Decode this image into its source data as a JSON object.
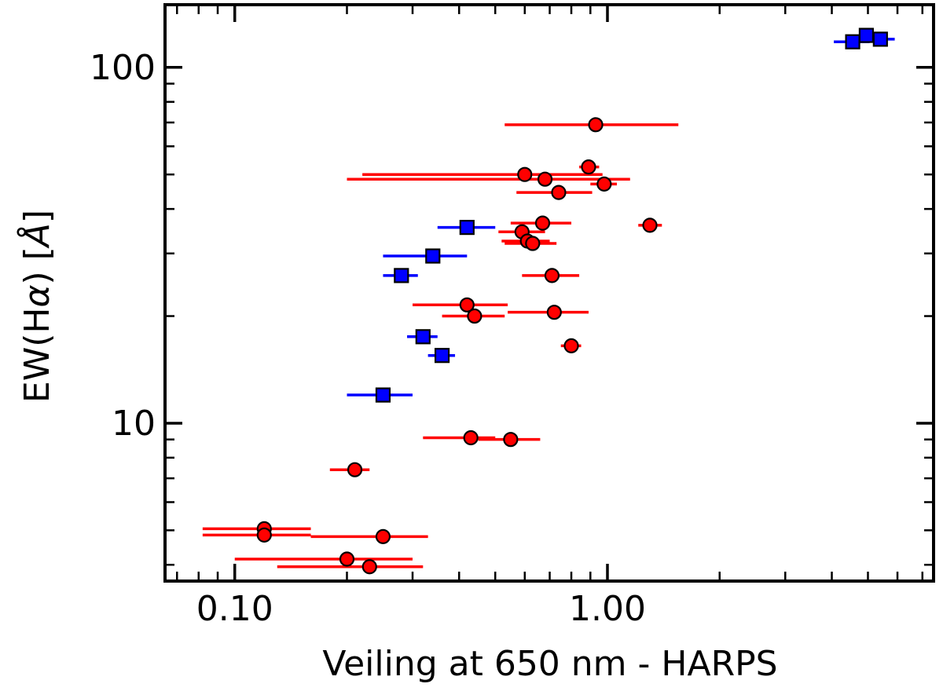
{
  "chart_data": {
    "type": "scatter",
    "title": "",
    "xlabel": "Veiling at 650 nm - HARPS",
    "ylabel_prefix": "EW(H",
    "ylabel_alpha": "α",
    "ylabel_suffix": ") [",
    "ylabel_unit": "Å",
    "ylabel_close": "]",
    "xscale": "log",
    "yscale": "log",
    "xlim": [
      0.065,
      7.5
    ],
    "ylim": [
      3.6,
      150
    ],
    "xticks": [
      {
        "value": 0.1,
        "label": "0.10"
      },
      {
        "value": 1.0,
        "label": "1.00"
      }
    ],
    "yticks": [
      {
        "value": 10,
        "label": "10"
      },
      {
        "value": 100,
        "label": "100"
      }
    ],
    "legend": "none",
    "grid": false,
    "series": [
      {
        "name": "red-circles",
        "marker": "circle",
        "color": "#ff0000",
        "points": [
          {
            "x": 0.93,
            "y": 69,
            "xlo": 0.53,
            "xhi": 1.55
          },
          {
            "x": 0.89,
            "y": 52.5,
            "xlo": 0.84,
            "xhi": 0.95
          },
          {
            "x": 0.6,
            "y": 50,
            "xlo": 0.22,
            "xhi": 0.97
          },
          {
            "x": 0.68,
            "y": 48.5,
            "xlo": 0.2,
            "xhi": 1.15
          },
          {
            "x": 0.98,
            "y": 47,
            "xlo": 0.9,
            "xhi": 1.06
          },
          {
            "x": 0.74,
            "y": 44.5,
            "xlo": 0.57,
            "xhi": 0.91
          },
          {
            "x": 0.67,
            "y": 36.5,
            "xlo": 0.55,
            "xhi": 0.8
          },
          {
            "x": 1.3,
            "y": 36,
            "xlo": 1.21,
            "xhi": 1.4
          },
          {
            "x": 0.59,
            "y": 34.5,
            "xlo": 0.51,
            "xhi": 0.68
          },
          {
            "x": 0.61,
            "y": 32.5,
            "xlo": 0.52,
            "xhi": 0.7
          },
          {
            "x": 0.63,
            "y": 32,
            "xlo": 0.53,
            "xhi": 0.73
          },
          {
            "x": 0.71,
            "y": 26,
            "xlo": 0.59,
            "xhi": 0.84
          },
          {
            "x": 0.42,
            "y": 21.5,
            "xlo": 0.3,
            "xhi": 0.54
          },
          {
            "x": 0.44,
            "y": 20,
            "xlo": 0.36,
            "xhi": 0.53
          },
          {
            "x": 0.72,
            "y": 20.5,
            "xlo": 0.54,
            "xhi": 0.89
          },
          {
            "x": 0.8,
            "y": 16.5,
            "xlo": 0.75,
            "xhi": 0.85
          },
          {
            "x": 0.43,
            "y": 9.1,
            "xlo": 0.32,
            "xhi": 0.5
          },
          {
            "x": 0.55,
            "y": 9,
            "xlo": 0.45,
            "xhi": 0.66
          },
          {
            "x": 0.21,
            "y": 7.4,
            "xlo": 0.18,
            "xhi": 0.23
          },
          {
            "x": 0.12,
            "y": 5.05,
            "xlo": 0.082,
            "xhi": 0.16
          },
          {
            "x": 0.12,
            "y": 4.85,
            "xlo": 0.082,
            "xhi": 0.16
          },
          {
            "x": 0.25,
            "y": 4.8,
            "xlo": 0.16,
            "xhi": 0.33
          },
          {
            "x": 0.2,
            "y": 4.15,
            "xlo": 0.1,
            "xhi": 0.3
          },
          {
            "x": 0.23,
            "y": 3.95,
            "xlo": 0.13,
            "xhi": 0.32
          }
        ]
      },
      {
        "name": "blue-squares",
        "marker": "square",
        "color": "#0000ff",
        "points": [
          {
            "x": 4.55,
            "y": 118,
            "xlo": 4.05,
            "xhi": 5.05
          },
          {
            "x": 4.95,
            "y": 123,
            "xlo": 4.75,
            "xhi": 5.15
          },
          {
            "x": 5.4,
            "y": 120,
            "xlo": 5.0,
            "xhi": 5.9
          },
          {
            "x": 0.42,
            "y": 35.5,
            "xlo": 0.35,
            "xhi": 0.5
          },
          {
            "x": 0.34,
            "y": 29.5,
            "xlo": 0.25,
            "xhi": 0.42
          },
          {
            "x": 0.28,
            "y": 26,
            "xlo": 0.25,
            "xhi": 0.31
          },
          {
            "x": 0.32,
            "y": 17.5,
            "xlo": 0.29,
            "xhi": 0.35
          },
          {
            "x": 0.36,
            "y": 15.5,
            "xlo": 0.33,
            "xhi": 0.39
          },
          {
            "x": 0.25,
            "y": 12,
            "xlo": 0.2,
            "xhi": 0.3
          }
        ]
      }
    ]
  }
}
